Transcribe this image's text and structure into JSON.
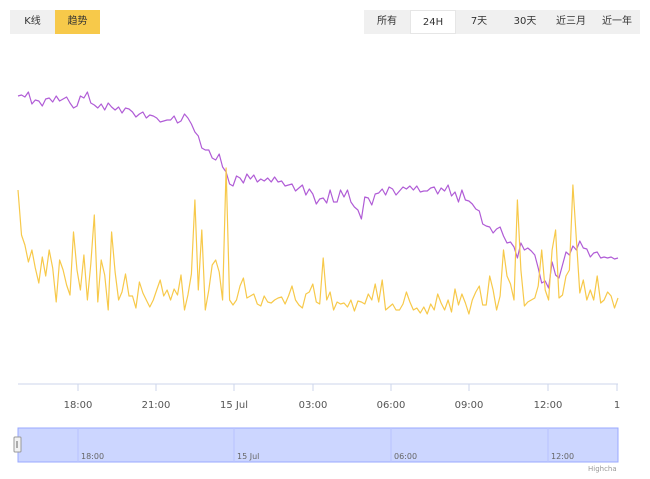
{
  "view_toggle": {
    "items": [
      {
        "label": "K线",
        "active": false
      },
      {
        "label": "趋势",
        "active": true
      }
    ]
  },
  "range_selector": {
    "items": [
      {
        "label": "所有",
        "active": false
      },
      {
        "label": "24H",
        "active": true
      },
      {
        "label": "7天",
        "active": false
      },
      {
        "label": "30天",
        "active": false
      },
      {
        "label": "近三月",
        "active": false
      },
      {
        "label": "近一年",
        "active": false
      }
    ]
  },
  "colors": {
    "price_line": "#b05cd6",
    "volume_line": "#f7c94a",
    "active_button": "#f7c94a",
    "navigator_fill": "#ccd6ff",
    "navigator_line": "#9aa8ff"
  },
  "chart_data": {
    "type": "line",
    "x_tick_labels": [
      "18:00",
      "21:00",
      "15 Jul",
      "03:00",
      "06:00",
      "09:00",
      "12:00",
      "1"
    ],
    "navigator_labels": [
      "18:00",
      "15 Jul",
      "06:00",
      "12:00"
    ],
    "credit": "Highcha",
    "grid": false,
    "series": [
      {
        "key": "price",
        "color": "#b05cd6",
        "values": [
          96,
          95,
          97,
          92,
          104,
          100,
          101,
          106,
          99,
          98,
          102,
          96,
          101,
          99,
          97,
          103,
          108,
          106,
          96,
          98,
          92,
          103,
          105,
          108,
          104,
          110,
          103,
          107,
          110,
          107,
          113,
          108,
          109,
          112,
          117,
          114,
          112,
          118,
          115,
          116,
          118,
          122,
          121,
          120,
          120,
          116,
          123,
          121,
          114,
          118,
          124,
          132,
          136,
          148,
          150,
          150,
          158,
          160,
          154,
          167,
          172,
          184,
          186,
          176,
          178,
          183,
          174,
          179,
          175,
          182,
          179,
          181,
          178,
          182,
          177,
          182,
          181,
          186,
          185,
          184,
          191,
          188,
          185,
          195,
          189,
          194,
          204,
          199,
          198,
          203,
          190,
          202,
          202,
          190,
          197,
          190,
          202,
          207,
          210,
          219,
          197,
          198,
          205,
          194,
          193,
          189,
          195,
          187,
          189,
          195,
          191,
          187,
          189,
          186,
          190,
          186,
          192,
          191,
          191,
          188,
          187,
          194,
          188,
          191,
          185,
          196,
          192,
          202,
          190,
          200,
          201,
          204,
          209,
          211,
          224,
          226,
          227,
          233,
          229,
          227,
          236,
          243,
          242,
          247,
          258,
          243,
          250,
          248,
          251,
          255,
          268,
          283,
          281,
          288,
          262,
          275,
          278,
          265,
          252,
          255,
          246,
          250,
          241,
          248,
          249,
          257,
          253,
          252,
          258,
          257,
          258,
          257,
          259,
          258
        ]
      },
      {
        "key": "volume",
        "color": "#f7c94a",
        "values": [
          190,
          235,
          245,
          262,
          250,
          268,
          283,
          257,
          276,
          250,
          268,
          302,
          260,
          270,
          285,
          295,
          232,
          270,
          290,
          255,
          300,
          264,
          215,
          302,
          260,
          275,
          310,
          232,
          272,
          300,
          292,
          274,
          296,
          296,
          308,
          282,
          293,
          300,
          307,
          300,
          290,
          280,
          296,
          290,
          300,
          289,
          295,
          275,
          310,
          295,
          274,
          200,
          290,
          230,
          310,
          290,
          265,
          260,
          272,
          300,
          168,
          300,
          305,
          300,
          286,
          278,
          298,
          296,
          294,
          304,
          306,
          296,
          302,
          303,
          300,
          298,
          297,
          304,
          296,
          286,
          300,
          305,
          308,
          294,
          292,
          284,
          302,
          304,
          258,
          300,
          292,
          310,
          302,
          304,
          303,
          307,
          300,
          311,
          301,
          302,
          304,
          294,
          300,
          284,
          302,
          280,
          310,
          307,
          304,
          310,
          310,
          304,
          292,
          302,
          310,
          308,
          313,
          307,
          314,
          304,
          310,
          294,
          303,
          310,
          300,
          312,
          289,
          305,
          294,
          303,
          314,
          300,
          292,
          286,
          305,
          305,
          276,
          290,
          310,
          296,
          250,
          276,
          284,
          300,
          200,
          270,
          306,
          302,
          300,
          298,
          286,
          250,
          290,
          300,
          250,
          230,
          298,
          295,
          276,
          270,
          185,
          240,
          293,
          280,
          300,
          290,
          300,
          276,
          303,
          300,
          292,
          296,
          308,
          298
        ]
      }
    ]
  }
}
